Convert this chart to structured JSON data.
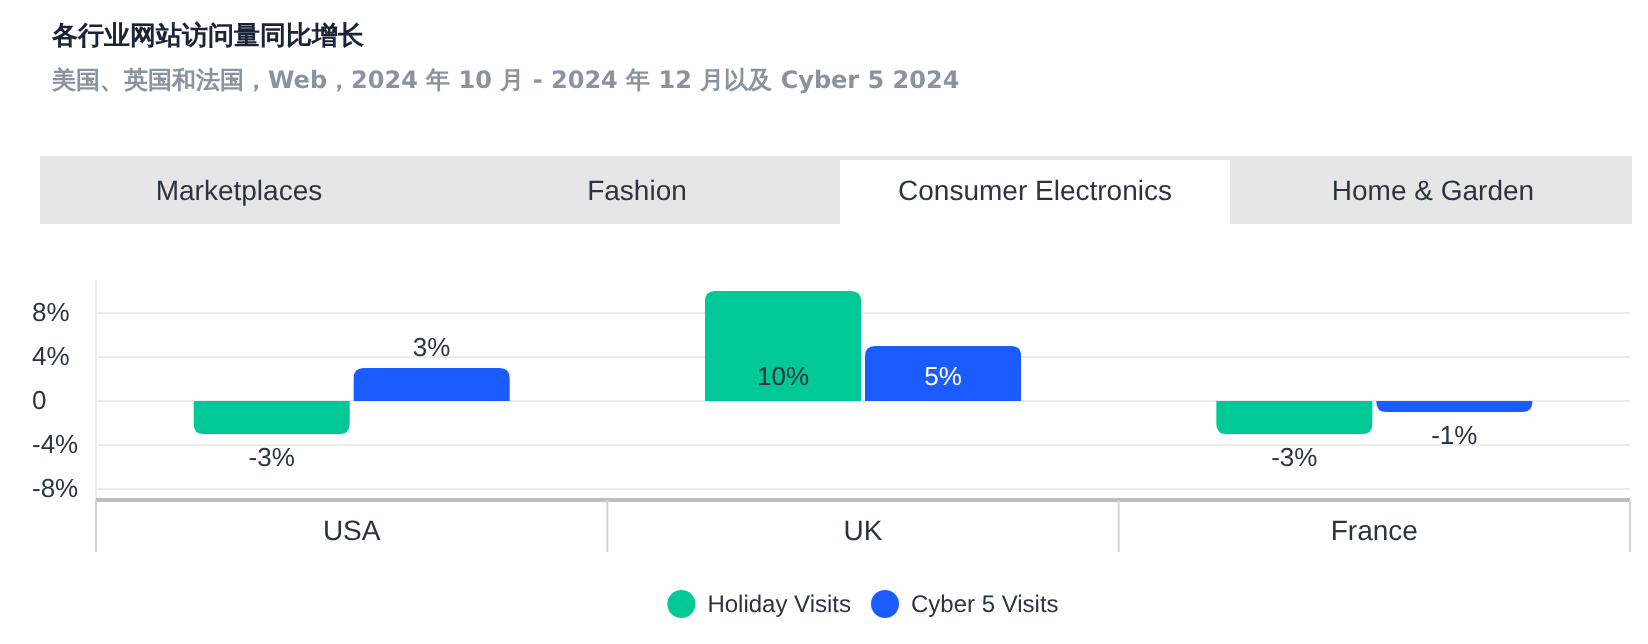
{
  "chart_data": {
    "type": "bar",
    "title": "各行业网站访问量同比增长",
    "subtitle": "美国、英国和法国，Web，2024 年 10 月 - 2024 年 12 月以及 Cyber 5 2024",
    "annotations": [
      "Marketplaces",
      "Fashion",
      "Consumer Electronics",
      "Home & Garden"
    ],
    "categories": [
      "USA",
      "UK",
      "France"
    ],
    "series": [
      {
        "name": "Holiday Visits",
        "color": "#00c896",
        "values": [
          -3,
          10,
          -3
        ],
        "value_labels": [
          "-3%",
          "10%",
          "-3%"
        ]
      },
      {
        "name": "Cyber 5 Visits",
        "color": "#1a5cff",
        "values": [
          3,
          5,
          -1
        ],
        "value_labels": [
          "3%",
          "5%",
          "-1%"
        ]
      }
    ],
    "ylim": [
      -9,
      11
    ],
    "yticks": [
      {
        "value": 8,
        "label": "8%"
      },
      {
        "value": 4,
        "label": "4%"
      },
      0,
      {
        "value": -4,
        "label": "-4%"
      },
      {
        "value": -8,
        "label": "-8%"
      }
    ],
    "grid": "y",
    "legend": "bottom"
  }
}
